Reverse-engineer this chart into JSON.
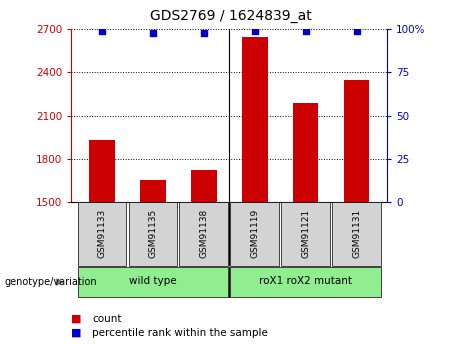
{
  "title": "GDS2769 / 1624839_at",
  "samples": [
    "GSM91133",
    "GSM91135",
    "GSM91138",
    "GSM91119",
    "GSM91121",
    "GSM91131"
  ],
  "counts": [
    1930,
    1655,
    1720,
    2650,
    2185,
    2350
  ],
  "percentile_ranks": [
    99,
    98,
    98,
    99,
    99,
    99
  ],
  "ylim_left": [
    1500,
    2700
  ],
  "ylim_right": [
    0,
    100
  ],
  "yticks_left": [
    1500,
    1800,
    2100,
    2400,
    2700
  ],
  "yticks_right": [
    0,
    25,
    50,
    75,
    100
  ],
  "bar_color": "#cc0000",
  "dot_color": "#0000cc",
  "group_divider": 2.5,
  "xlabel_color": "#cc0000",
  "ylabel_right_color": "#0000cc",
  "background_color": "#ffffff",
  "tick_label_box_color": "#d3d3d3",
  "group_color": "#90ee90",
  "legend_items": [
    {
      "label": "count",
      "color": "#cc0000"
    },
    {
      "label": "percentile rank within the sample",
      "color": "#0000cc"
    }
  ],
  "genotype_label": "genotype/variation",
  "bar_width": 0.5,
  "group_spans": [
    {
      "start": 0,
      "end": 2,
      "label": "wild type"
    },
    {
      "start": 3,
      "end": 5,
      "label": "roX1 roX2 mutant"
    }
  ]
}
